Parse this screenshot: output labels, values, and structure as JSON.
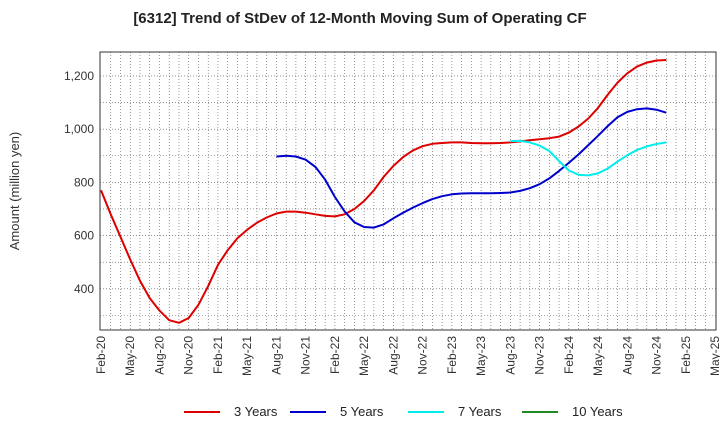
{
  "chart_data": {
    "type": "line",
    "title": "[6312]  Trend of StDev of 12-Month Moving Sum of Operating CF",
    "xlabel": "",
    "ylabel": "Amount (million yen)",
    "ylim": [
      245,
      1290
    ],
    "yticks": [
      400,
      600,
      800,
      1000,
      1200
    ],
    "ytick_labels": [
      "400",
      "600",
      "800",
      "1,000",
      "1,200"
    ],
    "x_tick_labels": [
      "Feb-20",
      "May-20",
      "Aug-20",
      "Nov-20",
      "Feb-21",
      "May-21",
      "Aug-21",
      "Nov-21",
      "Feb-22",
      "May-22",
      "Aug-22",
      "Nov-22",
      "Feb-23",
      "May-23",
      "Aug-23",
      "Nov-23",
      "Feb-24",
      "May-24",
      "Aug-24",
      "Nov-24",
      "Feb-25",
      "May-25"
    ],
    "x_unit": "month",
    "x_start": "2020-02",
    "x_end": "2025-05",
    "grid": true,
    "legend_position": "bottom",
    "series": [
      {
        "name": "3 Years",
        "color": "#dd0000",
        "x": [
          "2020-02",
          "2020-03",
          "2020-04",
          "2020-05",
          "2020-06",
          "2020-07",
          "2020-08",
          "2020-09",
          "2020-10",
          "2020-11",
          "2020-12",
          "2021-01",
          "2021-02",
          "2021-03",
          "2021-04",
          "2021-05",
          "2021-06",
          "2021-07",
          "2021-08",
          "2021-09",
          "2021-10",
          "2021-11",
          "2021-12",
          "2022-01",
          "2022-02",
          "2022-03",
          "2022-04",
          "2022-05",
          "2022-06",
          "2022-07",
          "2022-08",
          "2022-09",
          "2022-10",
          "2022-11",
          "2022-12",
          "2023-01",
          "2023-02",
          "2023-03",
          "2023-04",
          "2023-05",
          "2023-06",
          "2023-07",
          "2023-08",
          "2023-09",
          "2023-10",
          "2023-11",
          "2023-12",
          "2024-01",
          "2024-02",
          "2024-03",
          "2024-04",
          "2024-05",
          "2024-06",
          "2024-07",
          "2024-08",
          "2024-09",
          "2024-10",
          "2024-11",
          "2024-12",
          "2025-01",
          "2025-02"
        ],
        "values": [
          770,
          680,
          595,
          510,
          430,
          365,
          318,
          282,
          272,
          290,
          340,
          410,
          490,
          545,
          590,
          622,
          648,
          668,
          683,
          690,
          690,
          686,
          680,
          674,
          672,
          680,
          700,
          730,
          770,
          820,
          862,
          895,
          920,
          936,
          945,
          948,
          950,
          950,
          948,
          947,
          947,
          948,
          950,
          954,
          958,
          962,
          966,
          972,
          987,
          1010,
          1040,
          1080,
          1130,
          1175,
          1210,
          1235,
          1250,
          1258,
          1260,
          null,
          null
        ],
        "values_note_x_end": "2025-02"
      },
      {
        "name": "5 Years",
        "color": "#0000cc",
        "x": [
          "2021-08",
          "2021-09",
          "2021-10",
          "2021-11",
          "2021-12",
          "2022-01",
          "2022-02",
          "2022-03",
          "2022-04",
          "2022-05",
          "2022-06",
          "2022-07",
          "2022-08",
          "2022-09",
          "2022-10",
          "2022-11",
          "2022-12",
          "2023-01",
          "2023-02",
          "2023-03",
          "2023-04",
          "2023-05",
          "2023-06",
          "2023-07",
          "2023-08",
          "2023-09",
          "2023-10",
          "2023-11",
          "2023-12",
          "2024-01",
          "2024-02",
          "2024-03",
          "2024-04",
          "2024-05",
          "2024-06",
          "2024-07",
          "2024-08",
          "2024-09",
          "2024-10",
          "2024-11",
          "2024-12",
          "2025-01",
          "2025-02"
        ],
        "values": [
          897,
          900,
          897,
          885,
          858,
          810,
          745,
          690,
          650,
          632,
          630,
          642,
          665,
          686,
          705,
          722,
          737,
          748,
          755,
          758,
          759,
          759,
          759,
          760,
          762,
          768,
          778,
          793,
          815,
          843,
          873,
          905,
          940,
          975,
          1012,
          1045,
          1065,
          1075,
          1078,
          1073,
          1062,
          null,
          null
        ]
      },
      {
        "name": "7 Years",
        "color": "#00eeee",
        "x": [
          "2023-08",
          "2023-09",
          "2023-10",
          "2023-11",
          "2023-12",
          "2024-01",
          "2024-02",
          "2024-03",
          "2024-04",
          "2024-05",
          "2024-06",
          "2024-07",
          "2024-08",
          "2024-09",
          "2024-10",
          "2024-11",
          "2024-12",
          "2025-01",
          "2025-02"
        ],
        "values": [
          955,
          956,
          950,
          938,
          918,
          880,
          845,
          828,
          826,
          834,
          852,
          878,
          902,
          922,
          935,
          944,
          950,
          null,
          null
        ]
      },
      {
        "name": "10 Years",
        "color": "#228822",
        "x": [],
        "values": []
      }
    ]
  }
}
